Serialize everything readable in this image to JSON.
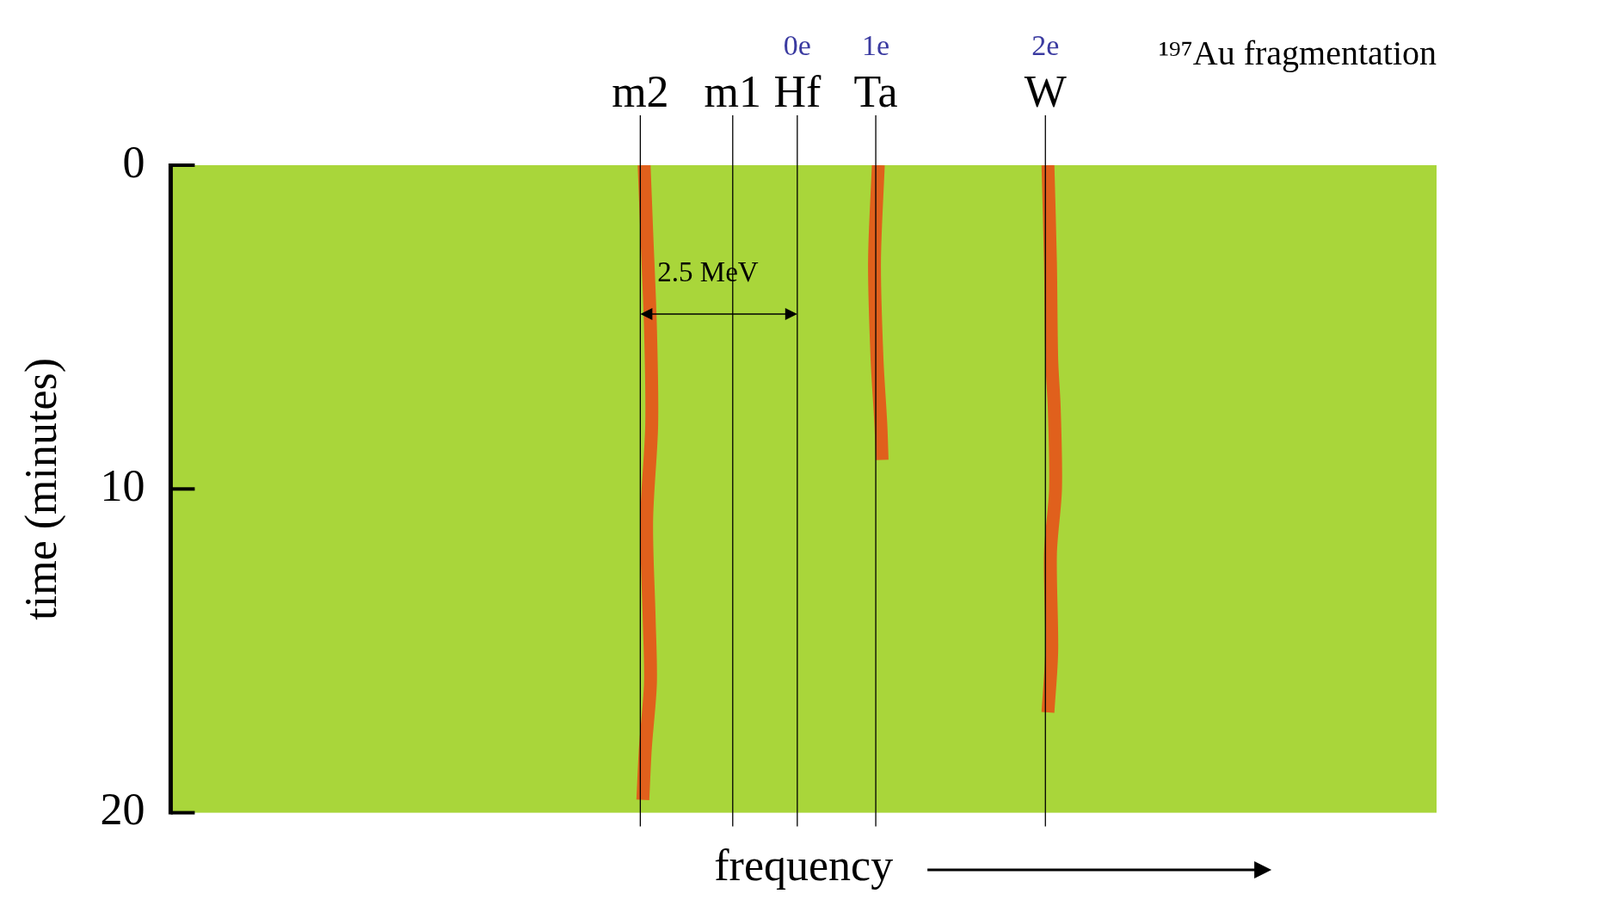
{
  "chart_data": {
    "type": "spectrogram",
    "title": "¹⁹⁷Au fragmentation",
    "x_label": "frequency",
    "y_label": "time (minutes)",
    "xlim": [
      0,
      100
    ],
    "ylim": [
      0,
      20
    ],
    "yticks": [
      0,
      10,
      20
    ],
    "tick_labels": "y",
    "grid": false,
    "series": [
      {
        "color": "#e0601c",
        "x": [
          37.4,
          37.6,
          37.9,
          38.0,
          37.6,
          37.8,
          37.9,
          37.5,
          37.3
        ],
        "values": [
          0,
          2,
          5,
          8,
          11,
          14,
          16,
          18,
          19.6
        ]
      },
      {
        "color": "#e0601c",
        "x": [
          55.9,
          55.6,
          55.8,
          56.1,
          56.2
        ],
        "values": [
          0,
          3,
          6,
          8,
          9.1
        ]
      },
      {
        "color": "#e0601c",
        "x": [
          69.3,
          69.5,
          69.6,
          69.8,
          69.9,
          69.5,
          69.6,
          69.3
        ],
        "values": [
          0,
          3,
          6,
          7.5,
          10,
          12,
          15,
          16.9
        ]
      }
    ],
    "reference_lines": [
      {
        "label": "m2",
        "x": 37.1
      },
      {
        "label": "m1",
        "x": 44.4
      },
      {
        "label": "Hf",
        "charge": "0e",
        "x": 49.5
      },
      {
        "label": "Ta",
        "charge": "1e",
        "x": 55.7
      },
      {
        "label": "W",
        "charge": "2e",
        "x": 69.1
      }
    ],
    "annotations": [
      {
        "text": "2.5 MeV",
        "x_from": 37.1,
        "x_to": 49.5,
        "y": 4.6
      }
    ]
  }
}
